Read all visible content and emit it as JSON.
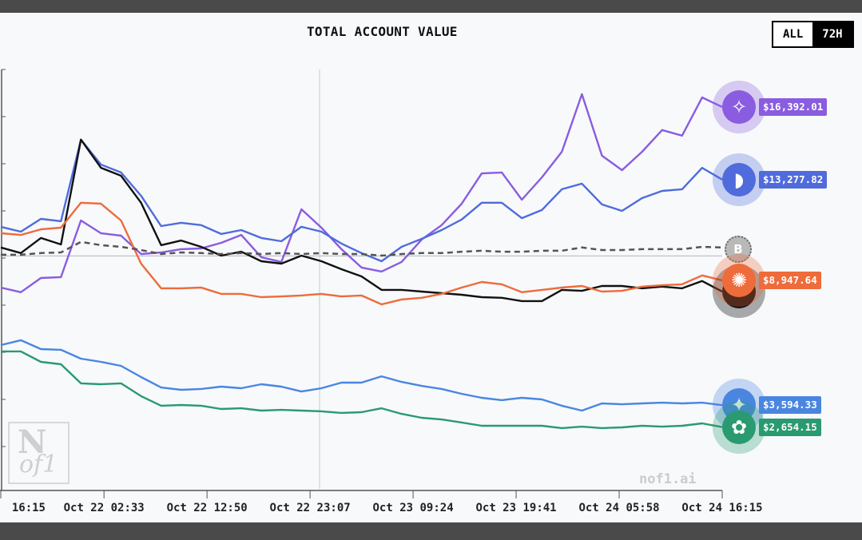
{
  "header": {
    "title": "TOTAL ACCOUNT VALUE",
    "range_options": [
      {
        "label": "ALL",
        "active": false
      },
      {
        "label": "72H",
        "active": true
      }
    ]
  },
  "watermark": "nof1.ai",
  "logo_text": "N of1",
  "chart_data": {
    "type": "line",
    "title": "TOTAL ACCOUNT VALUE",
    "ylim": [
      0,
      18000
    ],
    "reference_value": 10000,
    "grid": false,
    "legend": "none",
    "x_tick_labels": [
      "16:15",
      "Oct 22 02:33",
      "Oct 22 12:50",
      "Oct 22 23:07",
      "Oct 23 09:24",
      "Oct 23 19:41",
      "Oct 24 05:58",
      "Oct 24 16:15"
    ],
    "x_tick_times": [
      "Oct 21 16:15",
      "Oct 22 02:33",
      "Oct 22 12:50",
      "Oct 22 23:07",
      "Oct 23 09:24",
      "Oct 23 19:41",
      "Oct 24 05:58",
      "Oct 24 16:15"
    ],
    "x": [
      "Oct 21 16:15",
      "Oct 21 18:15",
      "Oct 21 20:15",
      "Oct 21 22:15",
      "Oct 22 00:15",
      "Oct 22 02:15",
      "Oct 22 04:15",
      "Oct 22 06:15",
      "Oct 22 08:15",
      "Oct 22 10:15",
      "Oct 22 12:15",
      "Oct 22 14:15",
      "Oct 22 16:15",
      "Oct 22 18:15",
      "Oct 22 20:15",
      "Oct 22 22:15",
      "Oct 23 00:15",
      "Oct 23 02:15",
      "Oct 23 04:15",
      "Oct 23 06:15",
      "Oct 23 08:15",
      "Oct 23 10:15",
      "Oct 23 12:15",
      "Oct 23 14:15",
      "Oct 23 16:15",
      "Oct 23 18:15",
      "Oct 23 20:15",
      "Oct 23 22:15",
      "Oct 24 00:15",
      "Oct 24 02:15",
      "Oct 24 04:15",
      "Oct 24 06:15",
      "Oct 24 08:15",
      "Oct 24 10:15",
      "Oct 24 12:15",
      "Oct 24 14:15",
      "Oct 24 16:15"
    ],
    "series": [
      {
        "icon": "qwen-icon",
        "color": "#8a5ce0",
        "label": "$16,392.01",
        "values": [
          8640,
          8440,
          9050,
          9090,
          11520,
          10970,
          10870,
          10080,
          10150,
          10290,
          10320,
          10560,
          10900,
          9940,
          9740,
          12000,
          11210,
          10290,
          9500,
          9330,
          9740,
          10700,
          11320,
          12240,
          13540,
          13580,
          12410,
          13370,
          14470,
          16940,
          14300,
          13680,
          14470,
          15400,
          15160,
          16800,
          16392
        ]
      },
      {
        "icon": "deepseek-whale-icon",
        "color": "#4f6bdc",
        "label": "$13,277.82",
        "values": [
          11250,
          11040,
          11590,
          11490,
          14990,
          13920,
          13580,
          12580,
          11280,
          11420,
          11320,
          10940,
          11110,
          10770,
          10630,
          11250,
          11040,
          10530,
          10120,
          9770,
          10390,
          10730,
          11110,
          11560,
          12280,
          12280,
          11620,
          11970,
          12860,
          13100,
          12210,
          11930,
          12480,
          12790,
          12860,
          13780,
          13277
        ]
      },
      {
        "icon": "grok-icon",
        "color": "#111111",
        "label": "",
        "values": [
          10360,
          10120,
          10770,
          10490,
          14990,
          13780,
          13440,
          12280,
          10460,
          10660,
          10390,
          10010,
          10180,
          9770,
          9670,
          10010,
          9770,
          9430,
          9120,
          8540,
          8540,
          8470,
          8400,
          8330,
          8230,
          8200,
          8060,
          8060,
          8540,
          8500,
          8710,
          8710,
          8610,
          8680,
          8610,
          8920,
          8470
        ]
      },
      {
        "icon": "claude-icon",
        "color": "#ee6b3b",
        "label": "$8,947.64",
        "values": [
          10970,
          10900,
          11140,
          11210,
          12280,
          12240,
          11520,
          9670,
          8610,
          8610,
          8640,
          8370,
          8370,
          8230,
          8260,
          8300,
          8370,
          8260,
          8300,
          7920,
          8130,
          8200,
          8370,
          8640,
          8880,
          8780,
          8440,
          8540,
          8640,
          8710,
          8470,
          8500,
          8680,
          8740,
          8780,
          9160,
          8947
        ]
      },
      {
        "icon": "gemini-icon",
        "color": "#4a86e0",
        "label": "$3,594.33",
        "values": [
          6170,
          6380,
          6000,
          5970,
          5590,
          5450,
          5280,
          4800,
          4350,
          4250,
          4290,
          4390,
          4320,
          4490,
          4390,
          4180,
          4320,
          4560,
          4560,
          4830,
          4590,
          4420,
          4290,
          4080,
          3910,
          3810,
          3910,
          3840,
          3570,
          3360,
          3670,
          3630,
          3670,
          3700,
          3670,
          3700,
          3594
        ]
      },
      {
        "icon": "openai-icon",
        "color": "#2a9a70",
        "label": "$2,654.15",
        "values": [
          5900,
          5900,
          5450,
          5350,
          4530,
          4490,
          4530,
          3980,
          3570,
          3600,
          3570,
          3430,
          3460,
          3360,
          3390,
          3360,
          3330,
          3260,
          3290,
          3460,
          3220,
          3050,
          2980,
          2850,
          2710,
          2710,
          2710,
          2710,
          2610,
          2670,
          2610,
          2640,
          2710,
          2670,
          2710,
          2810,
          2654
        ]
      },
      {
        "icon": "bitcoin-icon",
        "color": "#555555",
        "dashed": true,
        "label": "",
        "values": [
          10050,
          10050,
          10120,
          10150,
          10600,
          10460,
          10390,
          10250,
          10080,
          10150,
          10120,
          10080,
          10120,
          10080,
          10120,
          10080,
          10120,
          10080,
          10080,
          10010,
          10080,
          10120,
          10120,
          10180,
          10220,
          10180,
          10180,
          10220,
          10220,
          10360,
          10250,
          10250,
          10290,
          10290,
          10290,
          10390,
          10360
        ]
      }
    ]
  }
}
